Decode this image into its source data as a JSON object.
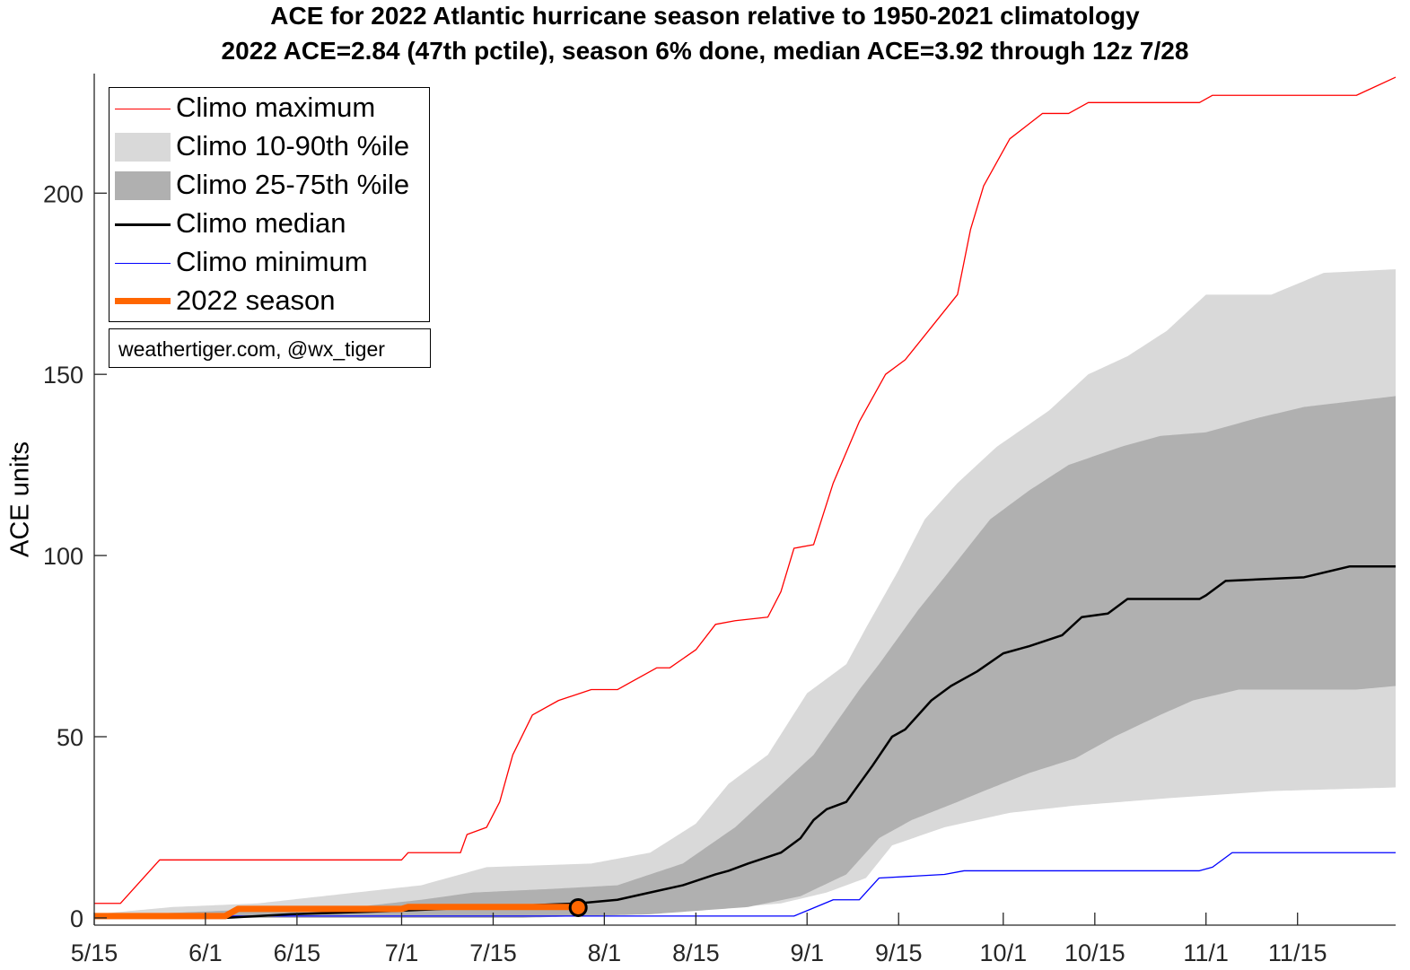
{
  "chart_data": {
    "type": "area",
    "title": "ACE for 2022 Atlantic hurricane season relative to 1950-2021 climatology",
    "subtitle": "2022 ACE=2.84 (47th pctile), season 6% done, median ACE=3.92 through 12z 7/28",
    "xlabel": "",
    "ylabel": "ACE units",
    "x_unit": "days since 5/15",
    "xlim": [
      0,
      199
    ],
    "ylim": [
      -2,
      233
    ],
    "xticks": [
      {
        "day": 0,
        "label": "5/15"
      },
      {
        "day": 17,
        "label": "6/1"
      },
      {
        "day": 31,
        "label": "6/15"
      },
      {
        "day": 47,
        "label": "7/1"
      },
      {
        "day": 61,
        "label": "7/15"
      },
      {
        "day": 78,
        "label": "8/1"
      },
      {
        "day": 92,
        "label": "8/15"
      },
      {
        "day": 109,
        "label": "9/1"
      },
      {
        "day": 123,
        "label": "9/15"
      },
      {
        "day": 139,
        "label": "10/1"
      },
      {
        "day": 153,
        "label": "10/15"
      },
      {
        "day": 170,
        "label": "11/1"
      },
      {
        "day": 184,
        "label": "11/15"
      }
    ],
    "yticks": [
      0,
      50,
      100,
      150,
      200
    ],
    "grid": false,
    "legend_position": "top-left",
    "legend": [
      "Climo maximum",
      "Climo 10-90th %ile",
      "Climo 25-75th %ile",
      "Climo median",
      "Climo minimum",
      "2022 season"
    ],
    "attribution": "weathertiger.com, @wx_tiger",
    "colors": {
      "max": "#ff0000",
      "band90": "#d9d9d9",
      "band75": "#b0b0b0",
      "median": "#000000",
      "min": "#0000ff",
      "season": "#ff6600"
    },
    "series": [
      {
        "name": "Climo maximum",
        "points": [
          [
            0,
            4
          ],
          [
            4,
            4
          ],
          [
            10,
            16
          ],
          [
            47,
            16
          ],
          [
            48,
            18
          ],
          [
            56,
            18
          ],
          [
            57,
            23
          ],
          [
            60,
            25
          ],
          [
            62,
            32
          ],
          [
            64,
            45
          ],
          [
            67,
            56
          ],
          [
            71,
            60
          ],
          [
            76,
            63
          ],
          [
            80,
            63
          ],
          [
            86,
            69
          ],
          [
            88,
            69
          ],
          [
            92,
            74
          ],
          [
            95,
            81
          ],
          [
            98,
            82
          ],
          [
            103,
            83
          ],
          [
            105,
            90
          ],
          [
            107,
            102
          ],
          [
            110,
            103
          ],
          [
            113,
            120
          ],
          [
            117,
            137
          ],
          [
            121,
            150
          ],
          [
            124,
            154
          ],
          [
            128,
            163
          ],
          [
            132,
            172
          ],
          [
            134,
            190
          ],
          [
            136,
            202
          ],
          [
            140,
            215
          ],
          [
            145,
            222
          ],
          [
            149,
            222
          ],
          [
            152,
            225
          ],
          [
            169,
            225
          ],
          [
            171,
            227
          ],
          [
            193,
            227
          ],
          [
            199,
            232
          ]
        ]
      },
      {
        "name": "Climo 10th",
        "points": [
          [
            0,
            0
          ],
          [
            60,
            0
          ],
          [
            80,
            1
          ],
          [
            92,
            2
          ],
          [
            105,
            4
          ],
          [
            112,
            7
          ],
          [
            118,
            11
          ],
          [
            122,
            20
          ],
          [
            130,
            25
          ],
          [
            140,
            29
          ],
          [
            150,
            31
          ],
          [
            164,
            33
          ],
          [
            180,
            35
          ],
          [
            199,
            36
          ]
        ]
      },
      {
        "name": "Climo 90th",
        "points": [
          [
            0,
            1
          ],
          [
            12,
            3
          ],
          [
            25,
            4
          ],
          [
            40,
            7
          ],
          [
            50,
            9
          ],
          [
            60,
            14
          ],
          [
            76,
            15
          ],
          [
            85,
            18
          ],
          [
            92,
            26
          ],
          [
            97,
            37
          ],
          [
            103,
            45
          ],
          [
            109,
            62
          ],
          [
            115,
            70
          ],
          [
            118,
            80
          ],
          [
            123,
            96
          ],
          [
            127,
            110
          ],
          [
            132,
            120
          ],
          [
            138,
            130
          ],
          [
            146,
            140
          ],
          [
            152,
            150
          ],
          [
            158,
            155
          ],
          [
            164,
            162
          ],
          [
            170,
            172
          ],
          [
            180,
            172
          ],
          [
            188,
            178
          ],
          [
            199,
            179
          ]
        ]
      },
      {
        "name": "Climo 25th",
        "points": [
          [
            0,
            0
          ],
          [
            65,
            0
          ],
          [
            85,
            1
          ],
          [
            100,
            3
          ],
          [
            108,
            6
          ],
          [
            115,
            12
          ],
          [
            120,
            22
          ],
          [
            125,
            27
          ],
          [
            132,
            32
          ],
          [
            136,
            35
          ],
          [
            143,
            40
          ],
          [
            150,
            44
          ],
          [
            156,
            50
          ],
          [
            163,
            56
          ],
          [
            168,
            60
          ],
          [
            175,
            63
          ],
          [
            193,
            63
          ],
          [
            199,
            64
          ]
        ]
      },
      {
        "name": "Climo 75th",
        "points": [
          [
            0,
            0.5
          ],
          [
            20,
            2
          ],
          [
            40,
            3
          ],
          [
            50,
            5
          ],
          [
            58,
            7
          ],
          [
            70,
            8
          ],
          [
            80,
            9
          ],
          [
            90,
            15
          ],
          [
            98,
            25
          ],
          [
            104,
            35
          ],
          [
            110,
            45
          ],
          [
            117,
            63
          ],
          [
            120,
            70
          ],
          [
            126,
            85
          ],
          [
            130,
            94
          ],
          [
            137,
            110
          ],
          [
            143,
            118
          ],
          [
            149,
            125
          ],
          [
            157,
            130
          ],
          [
            163,
            133
          ],
          [
            170,
            134
          ],
          [
            178,
            138
          ],
          [
            185,
            141
          ],
          [
            199,
            144
          ]
        ]
      },
      {
        "name": "Climo median",
        "points": [
          [
            0,
            0
          ],
          [
            20,
            0
          ],
          [
            30,
            1
          ],
          [
            47,
            2
          ],
          [
            60,
            3
          ],
          [
            74,
            4
          ],
          [
            80,
            5
          ],
          [
            85,
            7
          ],
          [
            90,
            9
          ],
          [
            95,
            12
          ],
          [
            97,
            13
          ],
          [
            100,
            15
          ],
          [
            105,
            18
          ],
          [
            108,
            22
          ],
          [
            110,
            27
          ],
          [
            112,
            30
          ],
          [
            115,
            32
          ],
          [
            119,
            42
          ],
          [
            122,
            50
          ],
          [
            124,
            52
          ],
          [
            128,
            60
          ],
          [
            131,
            64
          ],
          [
            135,
            68
          ],
          [
            139,
            73
          ],
          [
            143,
            75
          ],
          [
            148,
            78
          ],
          [
            151,
            83
          ],
          [
            155,
            84
          ],
          [
            158,
            88
          ],
          [
            169,
            88
          ],
          [
            170,
            89
          ],
          [
            173,
            93
          ],
          [
            185,
            94
          ],
          [
            192,
            97
          ],
          [
            199,
            97
          ]
        ]
      },
      {
        "name": "Climo minimum",
        "points": [
          [
            0,
            0.5
          ],
          [
            107,
            0.5
          ],
          [
            109,
            2
          ],
          [
            113,
            5
          ],
          [
            117,
            5
          ],
          [
            120,
            11
          ],
          [
            130,
            12
          ],
          [
            133,
            13
          ],
          [
            169,
            13
          ],
          [
            171,
            14
          ],
          [
            174,
            18
          ],
          [
            199,
            18
          ]
        ]
      },
      {
        "name": "2022 season",
        "points": [
          [
            0,
            0.5
          ],
          [
            20,
            0.5
          ],
          [
            22,
            2.5
          ],
          [
            47,
            2.5
          ],
          [
            48,
            3
          ],
          [
            74,
            3
          ]
        ]
      }
    ],
    "current_point": {
      "day": 74,
      "value": 2.84
    }
  }
}
